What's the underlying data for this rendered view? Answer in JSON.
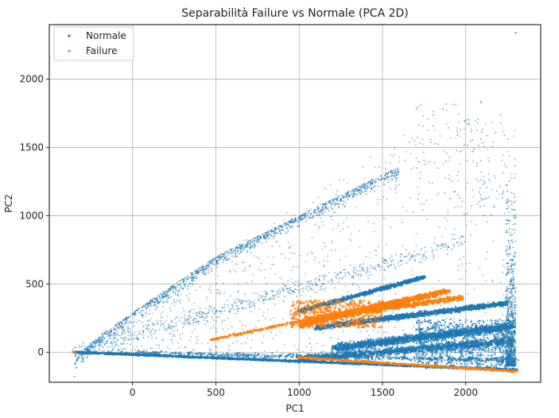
{
  "chart_data": {
    "type": "scatter",
    "title": "Separabilità Failure vs Normale (PCA 2D)",
    "xlabel": "PC1",
    "ylabel": "PC2",
    "xlim": [
      -500,
      2450
    ],
    "ylim": [
      -220,
      2400
    ],
    "xticks": [
      0,
      500,
      1000,
      1500,
      2000
    ],
    "yticks": [
      0,
      500,
      1000,
      1500,
      2000
    ],
    "grid": true,
    "legend_position": "top-left",
    "series": [
      {
        "name": "Normale",
        "color": "#1f77b4",
        "description_points": [
          [
            -350,
            0
          ],
          [
            0,
            290
          ],
          [
            500,
            680
          ],
          [
            1000,
            1040
          ],
          [
            1500,
            1280
          ],
          [
            2000,
            1600
          ],
          [
            2200,
            1870
          ],
          [
            2300,
            2340
          ],
          [
            -200,
            30
          ],
          [
            200,
            180
          ],
          [
            600,
            420
          ],
          [
            1000,
            650
          ],
          [
            1500,
            780
          ],
          [
            2000,
            820
          ],
          [
            1000,
            300
          ],
          [
            1400,
            420
          ],
          [
            1800,
            540
          ],
          [
            1100,
            170
          ],
          [
            1600,
            270
          ],
          [
            2200,
            360
          ],
          [
            1200,
            30
          ],
          [
            1800,
            80
          ],
          [
            2200,
            150
          ],
          [
            1800,
            -60
          ],
          [
            2300,
            -130
          ],
          [
            0,
            -30
          ],
          [
            1000,
            -80
          ],
          [
            2000,
            -110
          ],
          [
            1700,
            900
          ],
          [
            1900,
            1100
          ],
          [
            2100,
            1400
          ],
          [
            2250,
            800
          ],
          [
            2250,
            1000
          ],
          [
            2280,
            600
          ]
        ]
      },
      {
        "name": "Failure",
        "color": "#ff7f0e",
        "description_points": [
          [
            470,
            90
          ],
          [
            800,
            150
          ],
          [
            1000,
            200
          ],
          [
            1100,
            260
          ],
          [
            1300,
            320
          ],
          [
            1500,
            380
          ],
          [
            1700,
            450
          ],
          [
            1900,
            400
          ],
          [
            1050,
            220
          ],
          [
            1200,
            300
          ],
          [
            1400,
            330
          ],
          [
            1600,
            380
          ],
          [
            1800,
            420
          ],
          [
            1000,
            -40
          ],
          [
            1500,
            -80
          ],
          [
            2000,
            -120
          ],
          [
            2250,
            -140
          ]
        ]
      }
    ]
  }
}
